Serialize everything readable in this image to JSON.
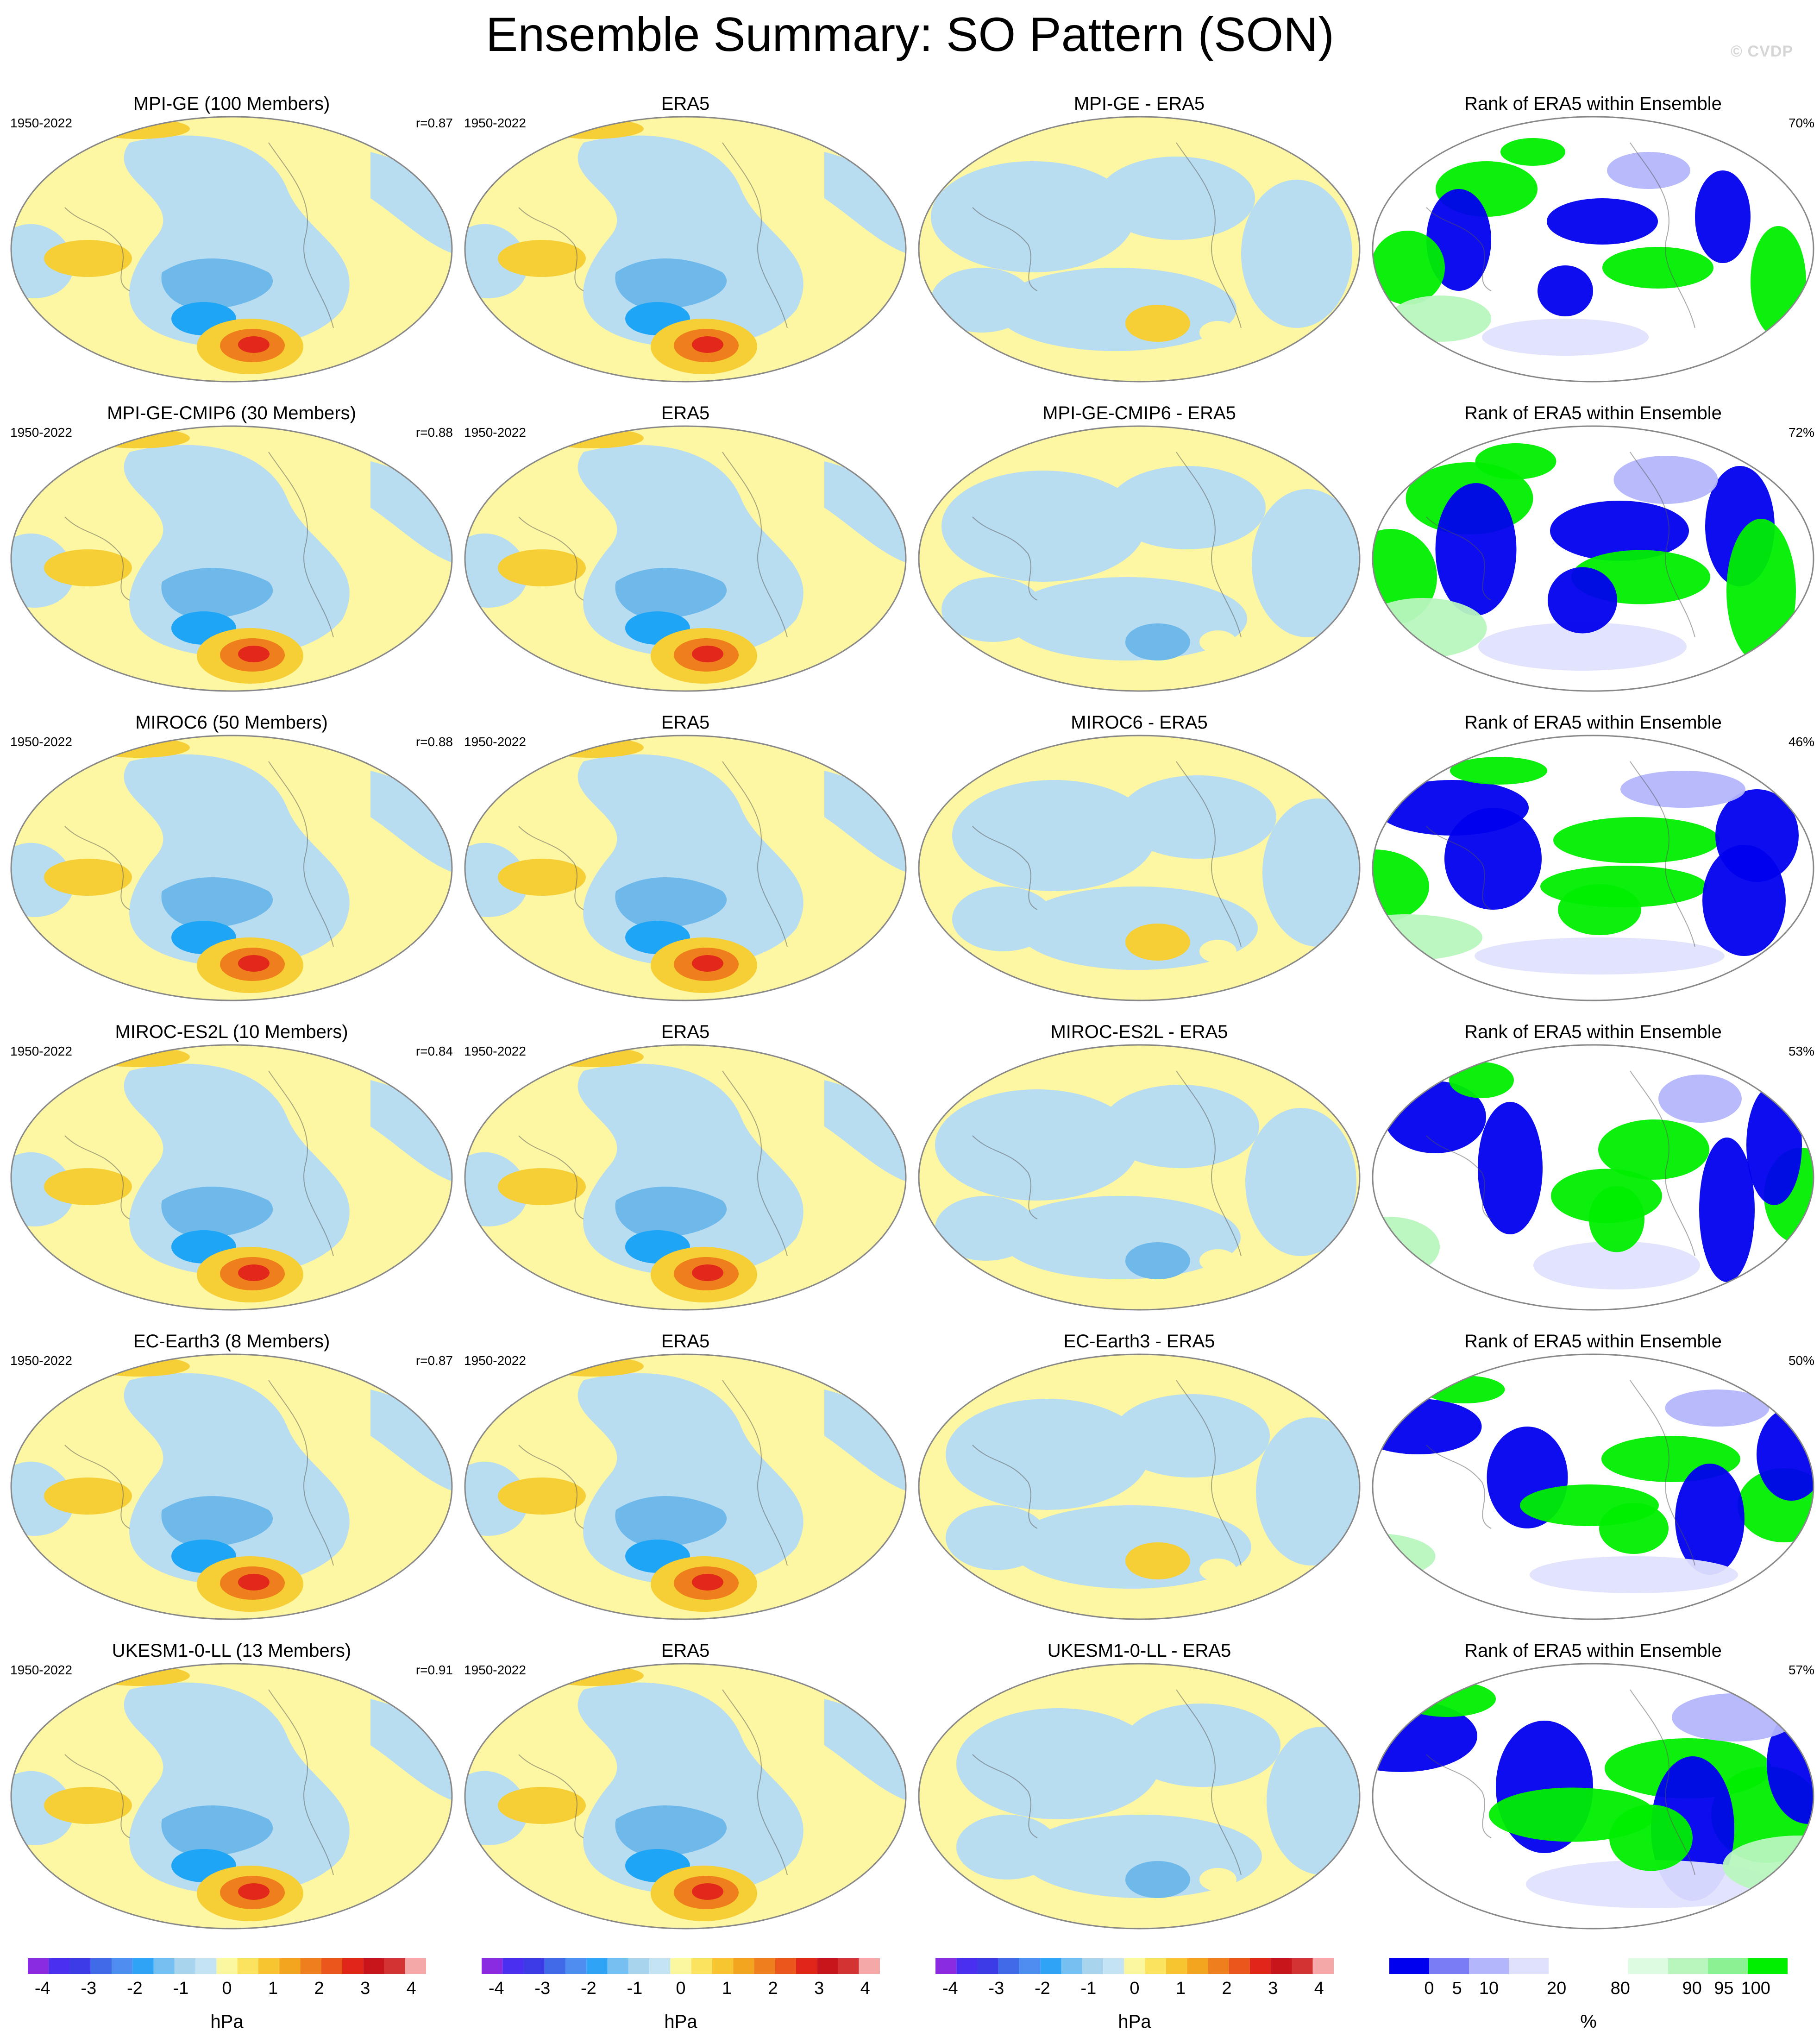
{
  "title": "Ensemble Summary: SO Pattern (SON)",
  "watermark": "© CVDP",
  "rows": [
    {
      "model": {
        "title": "MPI-GE (100 Members)",
        "years": "1950-2022",
        "stat": "r=0.87"
      },
      "obs": {
        "title": "ERA5",
        "years": "1950-2022"
      },
      "diff": {
        "title": "MPI-GE - ERA5"
      },
      "rank": {
        "title": "Rank of ERA5 within Ensemble",
        "stat": "70%"
      }
    },
    {
      "model": {
        "title": "MPI-GE-CMIP6 (30 Members)",
        "years": "1950-2022",
        "stat": "r=0.88"
      },
      "obs": {
        "title": "ERA5",
        "years": "1950-2022"
      },
      "diff": {
        "title": "MPI-GE-CMIP6 - ERA5"
      },
      "rank": {
        "title": "Rank of ERA5 within Ensemble",
        "stat": "72%"
      }
    },
    {
      "model": {
        "title": "MIROC6 (50 Members)",
        "years": "1950-2022",
        "stat": "r=0.88"
      },
      "obs": {
        "title": "ERA5",
        "years": "1950-2022"
      },
      "diff": {
        "title": "MIROC6 - ERA5"
      },
      "rank": {
        "title": "Rank of ERA5 within Ensemble",
        "stat": "46%"
      }
    },
    {
      "model": {
        "title": "MIROC-ES2L (10 Members)",
        "years": "1950-2022",
        "stat": "r=0.84"
      },
      "obs": {
        "title": "ERA5",
        "years": "1950-2022"
      },
      "diff": {
        "title": "MIROC-ES2L - ERA5"
      },
      "rank": {
        "title": "Rank of ERA5 within Ensemble",
        "stat": "53%"
      }
    },
    {
      "model": {
        "title": "EC-Earth3 (8 Members)",
        "years": "1950-2022",
        "stat": "r=0.87"
      },
      "obs": {
        "title": "ERA5",
        "years": "1950-2022"
      },
      "diff": {
        "title": "EC-Earth3 - ERA5"
      },
      "rank": {
        "title": "Rank of ERA5 within Ensemble",
        "stat": "50%"
      }
    },
    {
      "model": {
        "title": "UKESM1-0-LL (13 Members)",
        "years": "1950-2022",
        "stat": "r=0.91"
      },
      "obs": {
        "title": "ERA5",
        "years": "1950-2022"
      },
      "diff": {
        "title": "UKESM1-0-LL - ERA5"
      },
      "rank": {
        "title": "Rank of ERA5 within Ensemble",
        "stat": "57%"
      }
    }
  ],
  "colorbars": {
    "hpa": {
      "unit": "hPa",
      "ticks": [
        "-4",
        "-3",
        "-2",
        "-1",
        "0",
        "1",
        "2",
        "3",
        "4"
      ],
      "colors": [
        "#8a2be2",
        "#4b2ff0",
        "#3c3ce6",
        "#3f6ae8",
        "#4f8ef0",
        "#2fa4f7",
        "#75c0f0",
        "#a9d4ee",
        "#c4e4f4",
        "#fbf7a1",
        "#fbe35f",
        "#f7c52f",
        "#f3a51f",
        "#ef7f1c",
        "#ea561c",
        "#e0261b",
        "#c8141b",
        "#d33333",
        "#f4a8a8"
      ]
    },
    "rank": {
      "unit": "%",
      "ticks": [
        "0",
        "5",
        "10",
        "20",
        "80",
        "90",
        "95",
        "100"
      ],
      "colors": [
        "#0000ee",
        "#7a7cf6",
        "#b4b6fb",
        "#e0e1fd",
        "#ffffff",
        "#ffffff",
        "#ddfbe0",
        "#b8f6be",
        "#8cf193",
        "#00ee00"
      ]
    }
  },
  "colors": {
    "ocean_pos": "#fdf6a2",
    "ocean_neg": "#b8dcf0",
    "mid_neg": "#6fb8ea",
    "strong_neg": "#1fa5f5",
    "pos_orange": "#f6cf36",
    "high_red": "#e2271b",
    "rank_low": "#0000ee",
    "rank_high": "#00ee00"
  }
}
